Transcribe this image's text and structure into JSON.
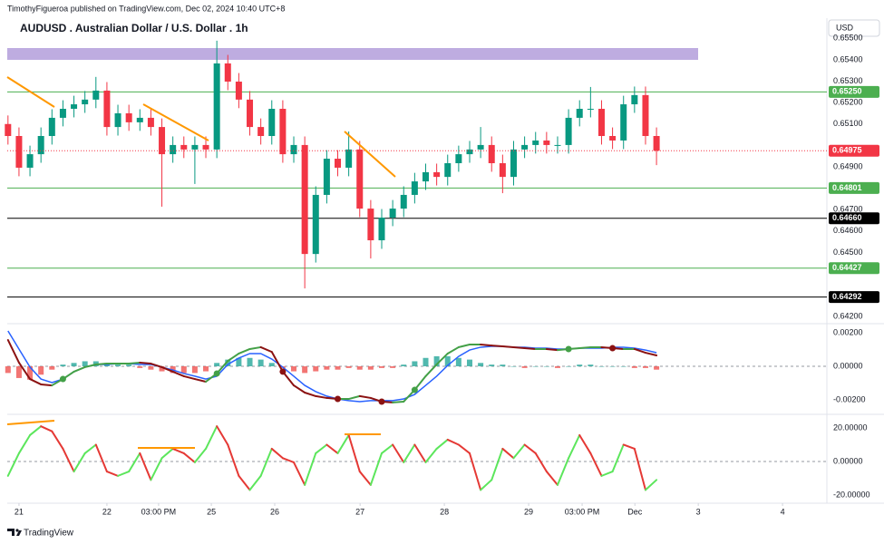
{
  "header": {
    "publisher": "TimothyFigueroa published on TradingView.com, Dec 02, 2024 10:40 UTC+8",
    "currency": "USD",
    "brand": "TradingView"
  },
  "chart_data": [
    {
      "type": "candlestick",
      "title": "AUDUSD . Australian Dollar / U.S. Dollar . 1h",
      "x": [
        -3,
        0,
        3,
        6,
        9,
        12,
        15,
        18,
        21,
        24,
        27,
        30,
        33,
        36,
        39,
        42,
        45,
        48,
        51,
        54,
        57,
        60,
        63,
        66,
        69,
        72,
        75,
        78,
        81,
        84,
        87,
        90,
        93,
        96,
        99,
        102,
        105,
        108,
        111,
        114,
        117,
        120,
        123,
        126,
        129,
        132,
        135,
        138,
        141,
        144,
        147,
        150,
        153,
        156,
        159,
        162,
        165,
        168,
        171,
        174
      ],
      "open": [
        0.651,
        0.65044,
        0.64896,
        0.64959,
        0.65044,
        0.65129,
        0.65171,
        0.65192,
        0.65214,
        0.65256,
        0.65086,
        0.6515,
        0.65108,
        0.65129,
        0.65086,
        0.64959,
        0.65002,
        0.64981,
        0.65002,
        0.64981,
        0.65383,
        0.65298,
        0.65214,
        0.65086,
        0.65044,
        0.65171,
        0.64959,
        0.65002,
        0.64493,
        0.64769,
        0.64938,
        0.64896,
        0.64981,
        0.64705,
        0.64557,
        0.64663,
        0.64705,
        0.64769,
        0.64832,
        0.64875,
        0.64853,
        0.64917,
        0.64959,
        0.64981,
        0.65002,
        0.64917,
        0.64853,
        0.64981,
        0.65002,
        0.65023,
        0.65002,
        0.65002,
        0.65129,
        0.65171,
        0.65171,
        0.65044,
        0.65023,
        0.65192,
        0.65235,
        0.65044
      ],
      "high": [
        0.6514,
        0.65084,
        0.64999,
        0.65084,
        0.65169,
        0.65211,
        0.65232,
        0.65254,
        0.6532,
        0.65296,
        0.6519,
        0.6519,
        0.65169,
        0.65169,
        0.65126,
        0.65042,
        0.65042,
        0.65042,
        0.65042,
        0.65489,
        0.65423,
        0.65338,
        0.65254,
        0.65126,
        0.65211,
        0.65211,
        0.65042,
        0.65042,
        0.64809,
        0.64978,
        0.64978,
        0.65065,
        0.65021,
        0.64745,
        0.64703,
        0.64745,
        0.64809,
        0.64872,
        0.64915,
        0.64915,
        0.64957,
        0.64999,
        0.65021,
        0.65086,
        0.65042,
        0.64957,
        0.65021,
        0.65042,
        0.65063,
        0.65063,
        0.65042,
        0.65169,
        0.65211,
        0.65273,
        0.65211,
        0.65084,
        0.65232,
        0.65275,
        0.65275,
        0.65084
      ],
      "low": [
        0.65004,
        0.64856,
        0.64856,
        0.64919,
        0.65004,
        0.65089,
        0.65131,
        0.65152,
        0.65174,
        0.65046,
        0.65046,
        0.65068,
        0.65068,
        0.65046,
        0.64714,
        0.64919,
        0.64941,
        0.6482,
        0.64941,
        0.64941,
        0.65258,
        0.65174,
        0.65046,
        0.65004,
        0.65004,
        0.64919,
        0.64919,
        0.64332,
        0.64453,
        0.64729,
        0.64856,
        0.64856,
        0.64665,
        0.64472,
        0.64517,
        0.64623,
        0.64665,
        0.64729,
        0.64792,
        0.64813,
        0.64813,
        0.64877,
        0.64919,
        0.64941,
        0.64877,
        0.64777,
        0.64813,
        0.64941,
        0.64962,
        0.64962,
        0.64962,
        0.64962,
        0.65089,
        0.65131,
        0.65004,
        0.64983,
        0.64983,
        0.65152,
        0.65004,
        0.64908
      ],
      "close": [
        0.65044,
        0.64896,
        0.64959,
        0.65044,
        0.65129,
        0.65171,
        0.65192,
        0.65214,
        0.65256,
        0.65086,
        0.6515,
        0.65108,
        0.65129,
        0.65086,
        0.64959,
        0.65002,
        0.64981,
        0.65002,
        0.64981,
        0.65383,
        0.65298,
        0.65214,
        0.65086,
        0.65044,
        0.65171,
        0.64959,
        0.65002,
        0.64493,
        0.64769,
        0.64938,
        0.64896,
        0.64981,
        0.64705,
        0.64557,
        0.64663,
        0.64705,
        0.64769,
        0.64832,
        0.64875,
        0.64853,
        0.64917,
        0.64959,
        0.64981,
        0.65002,
        0.64917,
        0.64853,
        0.64981,
        0.65002,
        0.65023,
        0.65002,
        0.65002,
        0.65129,
        0.65171,
        0.65171,
        0.65044,
        0.65023,
        0.65192,
        0.65235,
        0.65044,
        0.64975
      ],
      "up_color": "#089981",
      "down_color": "#f23645",
      "xlim": [
        -3.2,
        220.5
      ],
      "ylim": [
        0.64176,
        0.65586
      ],
      "yticks": [
        {
          "value": 0.655,
          "label": "0.65500"
        },
        {
          "value": 0.654,
          "label": "0.65400"
        },
        {
          "value": 0.653,
          "label": "0.65300"
        },
        {
          "value": 0.652,
          "label": "0.65200"
        },
        {
          "value": 0.651,
          "label": "0.65100"
        },
        {
          "value": 0.649,
          "label": "0.64900"
        },
        {
          "value": 0.647,
          "label": "0.64700"
        },
        {
          "value": 0.646,
          "label": "0.64600"
        },
        {
          "value": 0.645,
          "label": "0.64500"
        },
        {
          "value": 0.642,
          "label": "0.64200"
        }
      ],
      "levels": [
        {
          "value": 0.6525,
          "label": "0.65250",
          "color": "#4caf50"
        },
        {
          "value": 0.64801,
          "label": "0.64801",
          "color": "#4caf50"
        },
        {
          "value": 0.6466,
          "label": "0.64660",
          "color": "#000000"
        },
        {
          "value": 0.64427,
          "label": "0.64427",
          "color": "#4caf50"
        },
        {
          "value": 0.64292,
          "label": "0.64292",
          "color": "#000000"
        }
      ],
      "last": {
        "value": 0.64975,
        "label": "0.64975",
        "color": "#f23645"
      },
      "grid": false
    },
    {
      "type": "macd",
      "x": [
        -3,
        0,
        3,
        6,
        9,
        12,
        15,
        18,
        21,
        24,
        27,
        30,
        33,
        36,
        39,
        42,
        45,
        48,
        51,
        54,
        57,
        60,
        63,
        66,
        69,
        72,
        75,
        78,
        81,
        84,
        87,
        90,
        93,
        96,
        99,
        102,
        105,
        108,
        111,
        114,
        117,
        120,
        123,
        126,
        129,
        132,
        135,
        138,
        141,
        144,
        147,
        150,
        153,
        156,
        159,
        162,
        165,
        168,
        171,
        174
      ],
      "histogram": [
        -0.0004,
        -0.0007,
        -0.0008,
        -0.0005,
        -0.0002,
        0.0001,
        0.0002,
        0.0003,
        0.0003,
        0.0002,
        0.0001,
        0.0001,
        -0.0001,
        -0.0002,
        -0.0003,
        -0.0004,
        -0.0004,
        -0.0004,
        -0.0003,
        0.0002,
        0.0004,
        0.0005,
        0.0005,
        0.0004,
        0.0002,
        -0.0001,
        -0.0003,
        -0.0004,
        -0.0003,
        -0.0002,
        -0.0002,
        -0.0001,
        -0.0002,
        -0.0002,
        -0.0001,
        -0.0001,
        0.0001,
        0.0003,
        0.0005,
        0.0006,
        0.0006,
        0.0005,
        0.0004,
        0.0002,
        0.0001,
        0.0001,
        0,
        -0.0001,
        0,
        0,
        -0.0001,
        0,
        0.0001,
        0.0001,
        0,
        0,
        0,
        -0.0001,
        -0.0001,
        -0.0002
      ],
      "hist_colors": [
        "#26a69a",
        "#ef5350"
      ],
      "series": [
        {
          "color": "#2962ff",
          "values": [
            0.00211,
            0.00103,
            -5e-05,
            -0.00076,
            -0.00097,
            -0.00076,
            -0.00032,
            -5e-05,
            0.00011,
            0.00011,
            0.00016,
            0.00016,
            0.00011,
            0.00011,
            -5e-05,
            -0.00022,
            -0.00043,
            -0.00059,
            -0.00076,
            -0.00059,
            0.00011,
            0.00049,
            0.00076,
            0.00076,
            0.00043,
            -5e-05,
            -0.00059,
            -0.00114,
            -0.00151,
            -0.00178,
            -0.00195,
            -0.00205,
            -0.00211,
            -0.00205,
            -0.00205,
            -0.00205,
            -0.00195,
            -0.00168,
            -0.00114,
            -0.00059,
            5e-05,
            0.00059,
            0.00097,
            0.00114,
            0.00119,
            0.00119,
            0.00114,
            0.00114,
            0.00108,
            0.00108,
            0.00103,
            0.00103,
            0.00108,
            0.00108,
            0.00108,
            0.00114,
            0.00114,
            0.00108,
            0.00097,
            0.00081
          ]
        },
        {
          "up_color": "#43a047",
          "down_color": "#8b1212",
          "values": [
            0.00157,
            0.00022,
            -0.00076,
            -0.00108,
            -0.00114,
            -0.00076,
            -0.00032,
            -5e-05,
            0.00011,
            0.00016,
            0.00016,
            0.00016,
            0.00022,
            0.00016,
            -5e-05,
            -0.00032,
            -0.00059,
            -0.00076,
            -0.00092,
            -0.00043,
            0.00032,
            0.00076,
            0.00103,
            0.00114,
            0.00086,
            -0.00032,
            -0.00114,
            -0.00157,
            -0.00178,
            -0.00189,
            -0.00195,
            -0.00195,
            -0.00178,
            -0.00189,
            -0.00211,
            -0.00216,
            -0.00211,
            -0.00141,
            -0.00059,
            0.00011,
            0.00076,
            0.00114,
            0.0013,
            0.0013,
            0.00124,
            0.00119,
            0.00114,
            0.00108,
            0.00103,
            0.00103,
            0.00097,
            0.00103,
            0.00108,
            0.00114,
            0.00114,
            0.00108,
            0.00103,
            0.00103,
            0.00081,
            0.00065
          ]
        }
      ],
      "xlim": [
        -3.2,
        220.5
      ],
      "ylim": [
        -0.00276,
        0.00249
      ],
      "yticks": [
        {
          "value": 0.002,
          "label": "0.00200"
        },
        {
          "value": 0,
          "label": "0.00000"
        },
        {
          "value": -0.002,
          "label": "-0.00200"
        }
      ],
      "zero_line": true
    },
    {
      "type": "oscillator",
      "x": [
        -3,
        0,
        3,
        6,
        9,
        12,
        15,
        18,
        21,
        24,
        27,
        30,
        33,
        36,
        39,
        42,
        45,
        48,
        51,
        54,
        57,
        60,
        63,
        66,
        69,
        72,
        75,
        78,
        81,
        84,
        87,
        90,
        93,
        96,
        99,
        102,
        105,
        108,
        111,
        114,
        117,
        120,
        123,
        126,
        129,
        132,
        135,
        138,
        141,
        144,
        147,
        150,
        153,
        156,
        159,
        162,
        165,
        168,
        171,
        174
      ],
      "values": [
        -8.6,
        4.9,
        15.7,
        21,
        18,
        7.6,
        -6,
        4.9,
        10,
        -6,
        -8.6,
        -6,
        4.9,
        -11,
        2,
        7.6,
        4.9,
        -0.5,
        7.6,
        21,
        10,
        -8.6,
        -17,
        -8.6,
        7.6,
        2,
        -0.5,
        -14,
        4.9,
        10,
        4.9,
        15.7,
        -6,
        -14,
        4.9,
        10,
        -0.5,
        10,
        -0.5,
        7.6,
        13,
        10,
        4.9,
        -17,
        -11,
        7.6,
        2,
        10,
        4.9,
        -6,
        -14,
        2,
        15.7,
        4.9,
        -8.6,
        -6,
        10,
        7.6,
        -17,
        -11
      ],
      "up_color": "#5ce65c",
      "down_color": "#e53935",
      "xlim": [
        -3.2,
        220.5
      ],
      "ylim": [
        -24.9,
        26.5
      ],
      "yticks": [
        {
          "value": 20,
          "label": "20.00000"
        },
        {
          "value": 0,
          "label": "0.00000"
        },
        {
          "value": -20,
          "label": "-20.00000"
        }
      ],
      "xticks": [
        {
          "value": 0,
          "label": "21"
        },
        {
          "value": 24,
          "label": "22"
        },
        {
          "value": 38.1,
          "label": "03:00 PM"
        },
        {
          "value": 52.5,
          "label": "25"
        },
        {
          "value": 69.8,
          "label": "26"
        },
        {
          "value": 93.1,
          "label": "27"
        },
        {
          "value": 116.1,
          "label": "28"
        },
        {
          "value": 139.1,
          "label": "29"
        },
        {
          "value": 153.7,
          "label": "03:00 PM"
        },
        {
          "value": 168.1,
          "label": "Dec"
        },
        {
          "value": 185.4,
          "label": "3"
        },
        {
          "value": 208.4,
          "label": "4"
        }
      ],
      "zero_line": true
    }
  ]
}
